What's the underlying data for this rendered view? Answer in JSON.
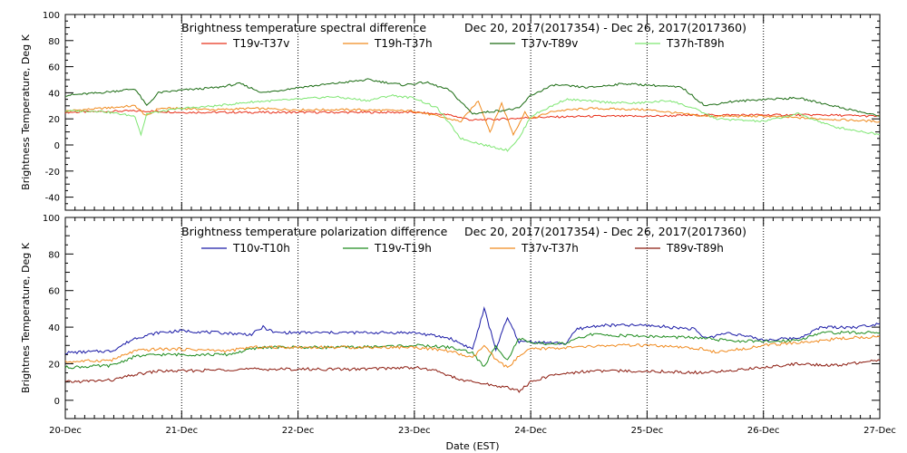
{
  "chart_data": [
    {
      "type": "line",
      "title": "Brightness temperature spectral difference",
      "date_range": "Dec 20, 2017(2017354) - Dec 26, 2017(2017360)",
      "ylabel": "Brightness Temperature, Deg K",
      "ylim": [
        -50,
        100
      ],
      "yticks": [
        -40,
        -20,
        0,
        20,
        40,
        60,
        80,
        100
      ],
      "xlim": [
        0,
        7
      ],
      "grid": "vertical dotted at day boundaries",
      "legend": "top, two rows of four columns",
      "series": [
        {
          "name": "T19v-T37v",
          "color": "#e8301a",
          "points": [
            [
              0,
              25
            ],
            [
              0.5,
              26
            ],
            [
              0.7,
              26
            ],
            [
              1,
              25
            ],
            [
              1.5,
              25
            ],
            [
              2,
              25
            ],
            [
              2.5,
              25
            ],
            [
              3,
              25
            ],
            [
              3.3,
              23
            ],
            [
              3.5,
              19
            ],
            [
              3.8,
              20
            ],
            [
              4,
              21
            ],
            [
              4.5,
              22
            ],
            [
              5,
              22
            ],
            [
              5.5,
              23
            ],
            [
              6,
              23
            ],
            [
              6.5,
              23
            ],
            [
              7,
              22
            ]
          ]
        },
        {
          "name": "T19h-T37h",
          "color": "#f08a1e",
          "points": [
            [
              0,
              26
            ],
            [
              0.3,
              28
            ],
            [
              0.6,
              30
            ],
            [
              0.7,
              22
            ],
            [
              0.8,
              28
            ],
            [
              1,
              28
            ],
            [
              1.3,
              27
            ],
            [
              1.6,
              28
            ],
            [
              2,
              27
            ],
            [
              2.5,
              27
            ],
            [
              3,
              26
            ],
            [
              3.2,
              22
            ],
            [
              3.4,
              18
            ],
            [
              3.55,
              34
            ],
            [
              3.65,
              10
            ],
            [
              3.75,
              32
            ],
            [
              3.85,
              8
            ],
            [
              3.95,
              25
            ],
            [
              4,
              20
            ],
            [
              4.2,
              26
            ],
            [
              4.5,
              28
            ],
            [
              5,
              27
            ],
            [
              5.5,
              22
            ],
            [
              6,
              22
            ],
            [
              6.5,
              20
            ],
            [
              7,
              18
            ]
          ]
        },
        {
          "name": "T37v-T89v",
          "color": "#1a6b12",
          "points": [
            [
              0,
              38
            ],
            [
              0.3,
              40
            ],
            [
              0.6,
              43
            ],
            [
              0.7,
              30
            ],
            [
              0.8,
              40
            ],
            [
              1,
              42
            ],
            [
              1.3,
              44
            ],
            [
              1.5,
              47
            ],
            [
              1.7,
              40
            ],
            [
              2,
              44
            ],
            [
              2.3,
              47
            ],
            [
              2.6,
              50
            ],
            [
              2.9,
              46
            ],
            [
              3.1,
              48
            ],
            [
              3.3,
              42
            ],
            [
              3.5,
              24
            ],
            [
              3.7,
              26
            ],
            [
              3.9,
              28
            ],
            [
              4,
              38
            ],
            [
              4.2,
              46
            ],
            [
              4.5,
              44
            ],
            [
              4.8,
              47
            ],
            [
              5,
              46
            ],
            [
              5.3,
              44
            ],
            [
              5.5,
              30
            ],
            [
              5.7,
              33
            ],
            [
              6,
              35
            ],
            [
              6.3,
              36
            ],
            [
              6.6,
              30
            ],
            [
              7,
              22
            ]
          ]
        },
        {
          "name": "T37h-T89h",
          "color": "#7ee672",
          "points": [
            [
              0,
              26
            ],
            [
              0.3,
              26
            ],
            [
              0.6,
              22
            ],
            [
              0.65,
              8
            ],
            [
              0.7,
              24
            ],
            [
              1,
              28
            ],
            [
              1.3,
              30
            ],
            [
              1.6,
              33
            ],
            [
              2,
              35
            ],
            [
              2.3,
              37
            ],
            [
              2.6,
              34
            ],
            [
              2.8,
              38
            ],
            [
              3,
              36
            ],
            [
              3.2,
              28
            ],
            [
              3.4,
              5
            ],
            [
              3.6,
              0
            ],
            [
              3.8,
              -4
            ],
            [
              3.9,
              5
            ],
            [
              4,
              22
            ],
            [
              4.3,
              35
            ],
            [
              4.6,
              33
            ],
            [
              4.9,
              32
            ],
            [
              5.2,
              34
            ],
            [
              5.4,
              28
            ],
            [
              5.6,
              20
            ],
            [
              6,
              18
            ],
            [
              6.3,
              24
            ],
            [
              6.6,
              14
            ],
            [
              7,
              8
            ]
          ]
        }
      ]
    },
    {
      "type": "line",
      "title": "Brightness temperature polarization difference",
      "date_range": "Dec 20, 2017(2017354) - Dec 26, 2017(2017360)",
      "ylabel": "Brightnes Temperature, Deg K",
      "xlabel": "Date (EST)",
      "ylim": [
        -10,
        100
      ],
      "yticks": [
        0,
        20,
        40,
        60,
        80,
        100
      ],
      "xlim": [
        0,
        7
      ],
      "categories": [
        "20-Dec",
        "21-Dec",
        "22-Dec",
        "23-Dec",
        "24-Dec",
        "25-Dec",
        "26-Dec",
        "27-Dec"
      ],
      "grid": "vertical dotted at day boundaries",
      "legend": "top, two rows of four columns",
      "series": [
        {
          "name": "T10v-T10h",
          "color": "#1a1aa6",
          "points": [
            [
              0,
              26
            ],
            [
              0.4,
              27
            ],
            [
              0.6,
              34
            ],
            [
              0.8,
              37
            ],
            [
              1,
              38
            ],
            [
              1.3,
              37
            ],
            [
              1.6,
              36
            ],
            [
              1.7,
              40
            ],
            [
              1.8,
              37
            ],
            [
              2,
              37
            ],
            [
              2.5,
              37
            ],
            [
              3,
              37
            ],
            [
              3.3,
              34
            ],
            [
              3.5,
              28
            ],
            [
              3.6,
              50
            ],
            [
              3.7,
              28
            ],
            [
              3.8,
              45
            ],
            [
              3.9,
              32
            ],
            [
              4,
              32
            ],
            [
              4.3,
              31
            ],
            [
              4.4,
              39
            ],
            [
              4.6,
              41
            ],
            [
              5,
              41
            ],
            [
              5.4,
              39
            ],
            [
              5.5,
              34
            ],
            [
              5.7,
              37
            ],
            [
              6,
              33
            ],
            [
              6.3,
              34
            ],
            [
              6.5,
              40
            ],
            [
              6.8,
              40
            ],
            [
              7,
              42
            ]
          ]
        },
        {
          "name": "T19v-T19h",
          "color": "#1e8c1e",
          "points": [
            [
              0,
              18
            ],
            [
              0.4,
              19
            ],
            [
              0.6,
              24
            ],
            [
              0.8,
              25
            ],
            [
              1,
              25
            ],
            [
              1.4,
              25
            ],
            [
              1.6,
              28
            ],
            [
              1.7,
              29
            ],
            [
              2,
              29
            ],
            [
              2.5,
              29
            ],
            [
              3,
              30
            ],
            [
              3.3,
              29
            ],
            [
              3.5,
              26
            ],
            [
              3.6,
              18
            ],
            [
              3.7,
              30
            ],
            [
              3.8,
              22
            ],
            [
              3.9,
              34
            ],
            [
              4,
              31
            ],
            [
              4.3,
              31
            ],
            [
              4.5,
              36
            ],
            [
              5,
              35
            ],
            [
              5.5,
              34
            ],
            [
              5.6,
              33
            ],
            [
              6,
              32
            ],
            [
              6.3,
              33
            ],
            [
              6.5,
              37
            ],
            [
              7,
              37
            ]
          ]
        },
        {
          "name": "T37v-T37h",
          "color": "#f08a1e",
          "points": [
            [
              0,
              21
            ],
            [
              0.4,
              22
            ],
            [
              0.6,
              27
            ],
            [
              0.8,
              28
            ],
            [
              1,
              28
            ],
            [
              1.4,
              27
            ],
            [
              1.6,
              29
            ],
            [
              2,
              29
            ],
            [
              2.5,
              29
            ],
            [
              3,
              29
            ],
            [
              3.3,
              27
            ],
            [
              3.5,
              23
            ],
            [
              3.6,
              30
            ],
            [
              3.7,
              22
            ],
            [
              3.8,
              18
            ],
            [
              3.9,
              24
            ],
            [
              4,
              28
            ],
            [
              4.4,
              29
            ],
            [
              4.7,
              30
            ],
            [
              5,
              30
            ],
            [
              5.5,
              28
            ],
            [
              5.6,
              26
            ],
            [
              6,
              30
            ],
            [
              6.4,
              32
            ],
            [
              6.7,
              34
            ],
            [
              7,
              35
            ]
          ]
        },
        {
          "name": "T89v-T89h",
          "color": "#8b1a0e",
          "points": [
            [
              0,
              10
            ],
            [
              0.4,
              11
            ],
            [
              0.6,
              14
            ],
            [
              0.8,
              16
            ],
            [
              1,
              16
            ],
            [
              1.5,
              17
            ],
            [
              2,
              17
            ],
            [
              2.5,
              17
            ],
            [
              3,
              18
            ],
            [
              3.2,
              16
            ],
            [
              3.4,
              11
            ],
            [
              3.6,
              9
            ],
            [
              3.8,
              7
            ],
            [
              3.9,
              5
            ],
            [
              4,
              10
            ],
            [
              4.2,
              14
            ],
            [
              4.5,
              16
            ],
            [
              5,
              16
            ],
            [
              5.5,
              15
            ],
            [
              6,
              18
            ],
            [
              6.3,
              20
            ],
            [
              6.6,
              19
            ],
            [
              6.9,
              21
            ],
            [
              7,
              22
            ]
          ]
        }
      ]
    }
  ]
}
